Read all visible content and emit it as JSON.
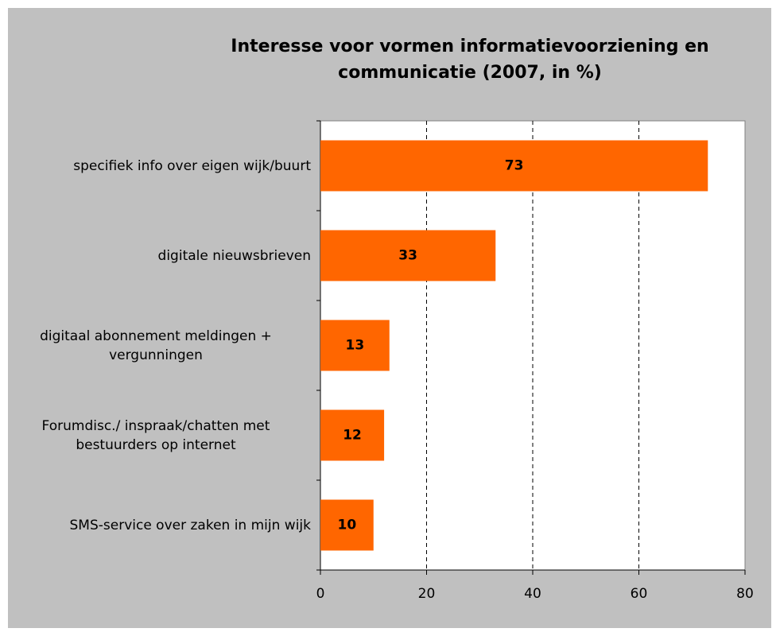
{
  "chart_data": {
    "type": "bar",
    "orientation": "horizontal",
    "title": "Interesse voor vormen informatievoorziening en communicatie (2007, in %)",
    "categories": [
      "specifiek info over eigen wijk/buurt",
      "digitale nieuwsbrieven",
      "digitaal abonnement meldingen + vergunningen",
      "Forumdisc./ inspraak/chatten met bestuurders op internet",
      "SMS-service over zaken in mijn wijk"
    ],
    "values": [
      73,
      33,
      13,
      12,
      10
    ],
    "color": "#ff6600",
    "xlim": [
      0,
      80
    ],
    "xticks": [
      0,
      20,
      40,
      60,
      80
    ],
    "grid": true
  }
}
